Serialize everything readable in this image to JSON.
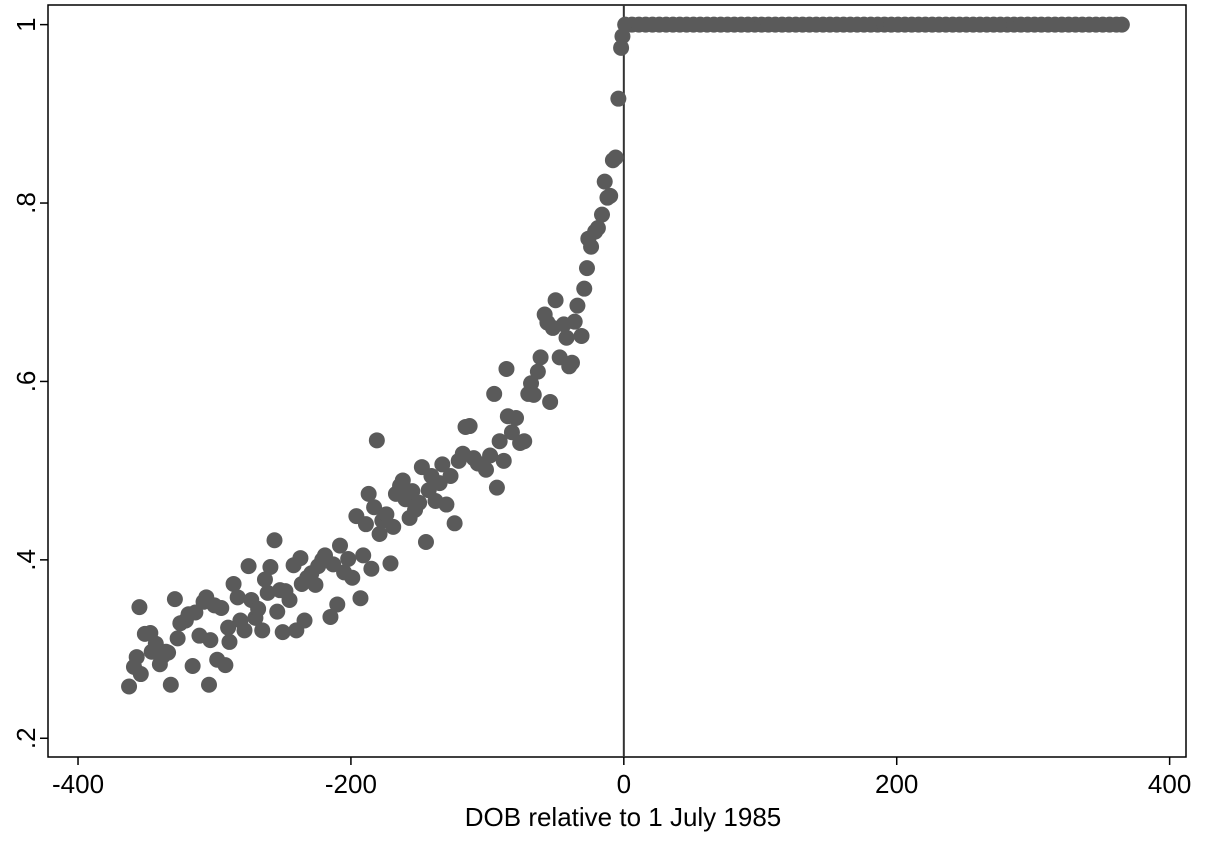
{
  "chart_data": {
    "type": "scatter",
    "x_label": "DOB relative to 1 July 1985",
    "marker_color": "#5a5a5a",
    "reference_line_x": 0,
    "grid": false,
    "xlim": [
      -422,
      412
    ],
    "ylim": [
      0.179,
      1.022
    ],
    "xticks": [
      -400,
      -200,
      0,
      200,
      400
    ],
    "yticks": [
      {
        "value": 0.2,
        "label": ".2"
      },
      {
        "value": 0.4,
        "label": ".4"
      },
      {
        "value": 0.6,
        "label": ".6"
      },
      {
        "value": 0.8,
        "label": ".8"
      },
      1
    ],
    "x": [
      -362.6,
      -359,
      -357,
      -355,
      -354,
      -351,
      -347,
      -346,
      -343,
      -340,
      -338,
      -335.5,
      -334,
      -332,
      -329,
      -327,
      -325,
      -321,
      -319,
      -316,
      -314,
      -311,
      -308,
      -306,
      -304,
      -303,
      -300,
      -298,
      -295,
      -292,
      -290,
      -289,
      -286,
      -283,
      -281,
      -278,
      -275,
      -273,
      -270,
      -268,
      -265,
      -263,
      -261,
      -259,
      -256,
      -254,
      -252,
      -250,
      -248,
      -245,
      -242,
      -240,
      -237,
      -236,
      -234,
      -232,
      -229,
      -226,
      -224,
      -221,
      -219,
      -215,
      -213,
      -210,
      -208,
      -205,
      -202,
      -199,
      -196,
      -193,
      -191,
      -189,
      -187,
      -185,
      -183,
      -181,
      -179,
      -177,
      -174,
      -171,
      -169,
      -167,
      -164,
      -162,
      -160,
      -157,
      -155,
      -153,
      -150,
      -148,
      -145,
      -143,
      -141,
      -138,
      -135,
      -133,
      -130,
      -127,
      -124,
      -121,
      -118,
      -116,
      -113,
      -110,
      -107,
      -104,
      -101,
      -98,
      -95,
      -93,
      -91,
      -88,
      -86,
      -85,
      -82,
      -79,
      -76,
      -73,
      -70,
      -68,
      -66,
      -63,
      -61,
      -58,
      -56,
      -54,
      -52,
      -50,
      -47,
      -44,
      -42,
      -40,
      -38,
      -36,
      -34,
      -31,
      -29,
      -27,
      -26,
      -24,
      -21,
      -19,
      -16,
      -14,
      -12,
      -10,
      -8,
      -6,
      -4,
      -2,
      -1,
      1,
      6,
      11,
      16,
      21,
      26,
      31,
      36,
      41,
      46,
      51,
      56,
      61,
      66,
      71,
      76,
      81,
      86,
      91,
      96,
      101,
      106,
      111,
      116,
      121,
      126,
      131,
      136,
      141,
      146,
      151,
      156,
      161,
      166,
      171,
      176,
      181,
      186,
      191,
      196,
      201,
      206,
      211,
      216,
      221,
      226,
      231,
      236,
      241,
      246,
      251,
      256,
      261,
      266,
      271,
      276,
      281,
      286,
      291,
      296,
      301,
      306,
      311,
      316,
      321,
      326,
      331,
      336,
      341,
      346,
      351,
      356,
      361,
      365
    ],
    "values": [
      0.258,
      0.28,
      0.291,
      0.347,
      0.272,
      0.317,
      0.318,
      0.297,
      0.306,
      0.283,
      0.292,
      0.297,
      0.296,
      0.26,
      0.356,
      0.312,
      0.329,
      0.332,
      0.339,
      0.281,
      0.341,
      0.315,
      0.353,
      0.358,
      0.26,
      0.31,
      0.349,
      0.288,
      0.346,
      0.282,
      0.324,
      0.308,
      0.373,
      0.358,
      0.332,
      0.321,
      0.393,
      0.355,
      0.335,
      0.345,
      0.321,
      0.378,
      0.363,
      0.392,
      0.422,
      0.342,
      0.366,
      0.319,
      0.365,
      0.355,
      0.394,
      0.321,
      0.402,
      0.373,
      0.332,
      0.38,
      0.385,
      0.372,
      0.393,
      0.4,
      0.405,
      0.336,
      0.395,
      0.35,
      0.416,
      0.386,
      0.401,
      0.38,
      0.449,
      0.357,
      0.405,
      0.44,
      0.474,
      0.39,
      0.459,
      0.534,
      0.429,
      0.444,
      0.451,
      0.396,
      0.437,
      0.474,
      0.483,
      0.489,
      0.468,
      0.447,
      0.477,
      0.456,
      0.464,
      0.504,
      0.42,
      0.478,
      0.494,
      0.466,
      0.486,
      0.507,
      0.462,
      0.494,
      0.441,
      0.511,
      0.519,
      0.549,
      0.55,
      0.514,
      0.508,
      0.507,
      0.501,
      0.517,
      0.586,
      0.481,
      0.533,
      0.511,
      0.614,
      0.561,
      0.543,
      0.559,
      0.531,
      0.533,
      0.586,
      0.598,
      0.585,
      0.611,
      0.627,
      0.675,
      0.666,
      0.577,
      0.66,
      0.691,
      0.627,
      0.664,
      0.649,
      0.617,
      0.621,
      0.667,
      0.685,
      0.651,
      0.704,
      0.727,
      0.76,
      0.751,
      0.768,
      0.772,
      0.787,
      0.824,
      0.806,
      0.808,
      0.848,
      0.851,
      0.917,
      0.974,
      0.987,
      1,
      1,
      1,
      1,
      1,
      1,
      1,
      1,
      1,
      1,
      1,
      1,
      1,
      1,
      1,
      1,
      1,
      1,
      1,
      1,
      1,
      1,
      1,
      1,
      1,
      1,
      1,
      1,
      1,
      1,
      1,
      1,
      1,
      1,
      1,
      1,
      1,
      1,
      1,
      1,
      1,
      1,
      1,
      1,
      1,
      1,
      1,
      1,
      1,
      1,
      1,
      1,
      1,
      1,
      1,
      1,
      1,
      1,
      1,
      1,
      1,
      1,
      1,
      1,
      1,
      1,
      1,
      1,
      1,
      1,
      1,
      1,
      1,
      1
    ]
  }
}
